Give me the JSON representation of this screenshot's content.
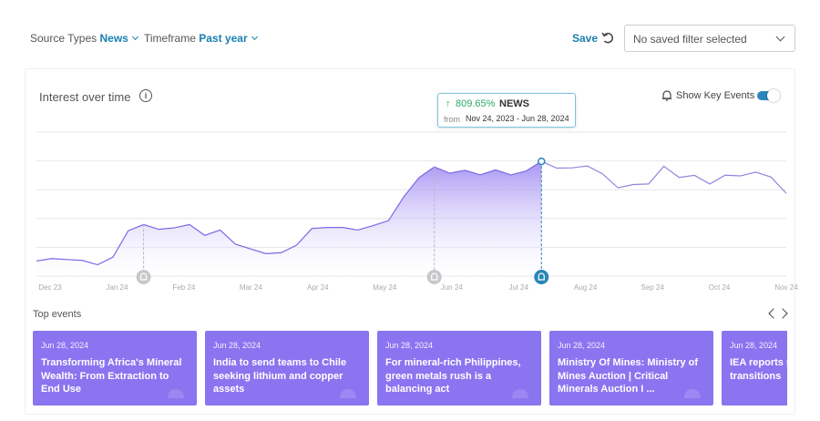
{
  "filters": {
    "source_types": {
      "label": "Source Types",
      "value": "News"
    },
    "timeframe": {
      "label": "Timeframe",
      "value": "Past year"
    },
    "save_label": "Save",
    "saved_filter_placeholder": "No saved filter selected"
  },
  "card": {
    "title": "Interest over time",
    "key_events_label": "Show Key Events",
    "key_events_on": true
  },
  "tooltip": {
    "change": "809.65%",
    "series": "NEWS",
    "from_label": "from",
    "range": "Nov 24, 2023 - Jun 28, 2024"
  },
  "chart_data": {
    "type": "area",
    "title": "Interest over time",
    "series": [
      {
        "name": "NEWS",
        "values": [
          10.5,
          12.2,
          11.5,
          10.9,
          7.9,
          13.2,
          31.5,
          35.8,
          32.5,
          33.5,
          35.8,
          28.3,
          32.0,
          22.2,
          18.9,
          15.6,
          16.3,
          21.5,
          33.1,
          33.8,
          33.8,
          32.0,
          35.1,
          38.5,
          55.0,
          68.4,
          75.8,
          71.5,
          73.5,
          70.3,
          73.8,
          70.3,
          73.0,
          79.7,
          75.0,
          75.2,
          76.5,
          71.0,
          61.3,
          63.6,
          64.0,
          76.3,
          68.5,
          70.0,
          64.0,
          70.1,
          69.6,
          72.2,
          68.8,
          57.5
        ]
      }
    ],
    "highlight_index": 33,
    "x_tick_labels": [
      "Dec 23",
      "Jan 24",
      "Feb 24",
      "Mar 24",
      "Apr 24",
      "May 24",
      "Jun 24",
      "Jul 24",
      "Aug 24",
      "Sep 24",
      "Oct 24",
      "Nov 24"
    ],
    "key_events_at_index": [
      7,
      26,
      33
    ],
    "grid": true,
    "ylim": [
      0,
      100
    ],
    "colors": {
      "line": "#7b67e6",
      "fill_top": "#9d88f2",
      "fill_bottom": "#ffffff",
      "future_line": "#9085dc",
      "marker": "#2a86b8",
      "grid": "#e3e6ea"
    }
  },
  "top_events": {
    "title": "Top events",
    "items": [
      {
        "date": "Jun 28, 2024",
        "title": "Transforming Africa's Mineral Wealth: From Extraction to End Use"
      },
      {
        "date": "Jun 28, 2024",
        "title": "India to send teams to Chile seeking lithium and copper assets"
      },
      {
        "date": "Jun 28, 2024",
        "title": "For mineral-rich Philippines, green metals rush is a balancing act"
      },
      {
        "date": "Jun 28, 2024",
        "title": "Ministry Of Mines: Ministry of Mines Auction | Critical Minerals Auction I ..."
      },
      {
        "date": "Jun 28, 2024",
        "title": "IEA reports n critical mine transitions"
      }
    ]
  },
  "icons": {
    "undo": "undo-icon",
    "info": "info-icon",
    "bell": "bell-icon",
    "prev": "chevron-left-icon",
    "next": "chevron-right-icon"
  }
}
